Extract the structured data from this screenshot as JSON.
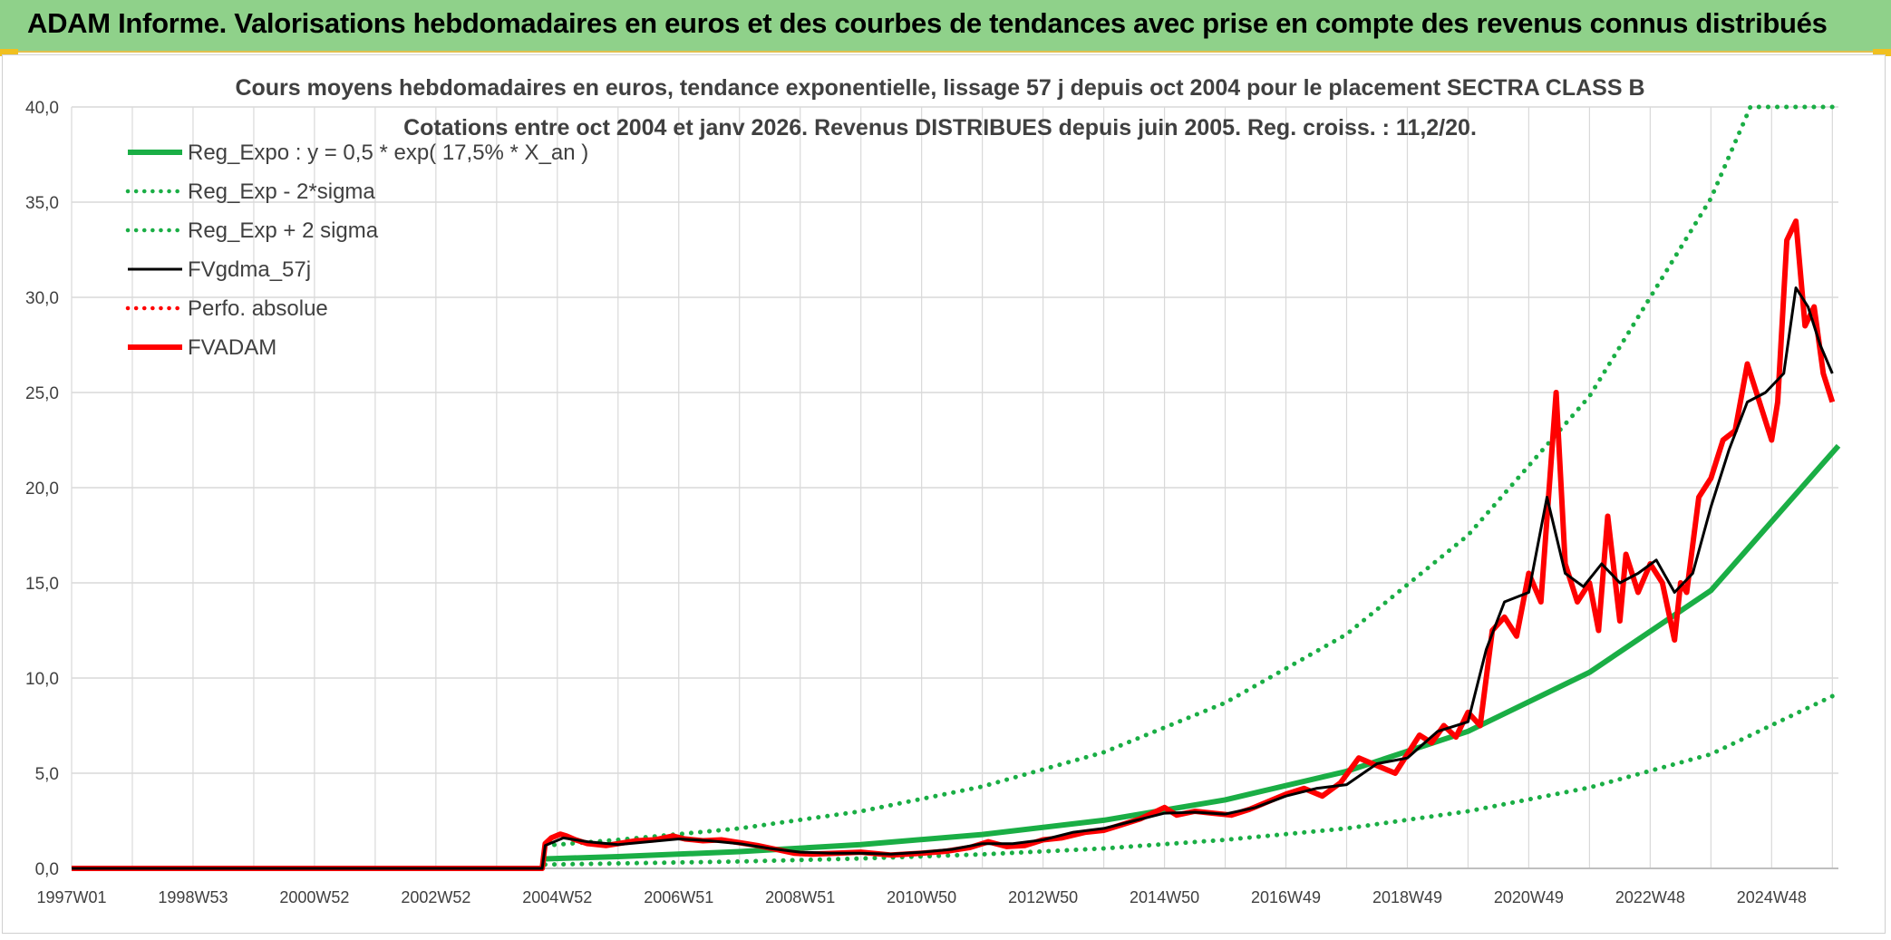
{
  "header": {
    "title": "ADAM Informe. Valorisations hebdomadaires en euros et des courbes de tendances avec prise en compte des revenus connus distribués"
  },
  "colors": {
    "header_bg": "#8fd18a",
    "green": "#1aae45",
    "black": "#000000",
    "red": "#ff0000",
    "grid": "#d9d9d9",
    "text": "#404040"
  },
  "chart_data": {
    "type": "line",
    "title": "Cours moyens hebdomadaires en euros, tendance exponentielle, lissage 57 j depuis oct 2004 pour le placement SECTRA CLASS B",
    "subtitle": "Cotations entre oct 2004 et janv 2026. Revenus DISTRIBUES depuis juin 2005. Reg. croiss. : 11,2/20.",
    "ylim": [
      0,
      40
    ],
    "yticks": [
      "0,0",
      "5,0",
      "10,0",
      "15,0",
      "20,0",
      "25,0",
      "30,0",
      "35,0",
      "40,0"
    ],
    "xlim": [
      1997.0,
      2026.1
    ],
    "xticks": [
      {
        "label": "1997W01",
        "x": 1997.0
      },
      {
        "label": "1998W53",
        "x": 1999.0
      },
      {
        "label": "2000W52",
        "x": 2001.0
      },
      {
        "label": "2002W52",
        "x": 2003.0
      },
      {
        "label": "2004W52",
        "x": 2005.0
      },
      {
        "label": "2006W51",
        "x": 2007.0
      },
      {
        "label": "2008W51",
        "x": 2009.0
      },
      {
        "label": "2010W50",
        "x": 2011.0
      },
      {
        "label": "2012W50",
        "x": 2013.0
      },
      {
        "label": "2014W50",
        "x": 2015.0
      },
      {
        "label": "2016W49",
        "x": 2017.0
      },
      {
        "label": "2018W49",
        "x": 2019.0
      },
      {
        "label": "2020W49",
        "x": 2021.0
      },
      {
        "label": "2022W48",
        "x": 2023.0
      },
      {
        "label": "2024W48",
        "x": 2025.0
      }
    ],
    "legend_position": "top-left",
    "series": [
      {
        "name": "Reg_Expo : y = 0,5 * exp( 17,5% *  X_an )",
        "style": "solid-thick",
        "color": "#1aae45",
        "x": [
          2004.8,
          2006,
          2008,
          2010,
          2012,
          2014,
          2016,
          2018,
          2020,
          2022,
          2024,
          2026.1
        ],
        "y": [
          0.5,
          0.62,
          0.88,
          1.25,
          1.78,
          2.53,
          3.6,
          5.1,
          7.2,
          10.3,
          14.6,
          22.2
        ]
      },
      {
        "name": "Reg_Exp - 2*sigma",
        "style": "dotted",
        "color": "#1aae45",
        "x": [
          2004.8,
          2006,
          2008,
          2010,
          2012,
          2014,
          2016,
          2018,
          2020,
          2022,
          2024,
          2026.1
        ],
        "y": [
          0.2,
          0.26,
          0.36,
          0.52,
          0.74,
          1.05,
          1.5,
          2.1,
          3.0,
          4.25,
          6.0,
          9.2
        ]
      },
      {
        "name": "Reg_Exp + 2 sigma",
        "style": "dotted",
        "color": "#1aae45",
        "x": [
          2004.8,
          2006,
          2008,
          2010,
          2012,
          2014,
          2016,
          2018,
          2020,
          2022,
          2024,
          2024.65,
          2026.1
        ],
        "y": [
          1.2,
          1.5,
          2.1,
          3.0,
          4.3,
          6.1,
          8.7,
          12.3,
          17.5,
          24.8,
          35.2,
          40,
          40
        ]
      },
      {
        "name": "FVgdma_57j",
        "style": "solid",
        "color": "#000000",
        "x": [
          1997.0,
          2004.75,
          2004.8,
          2005.1,
          2005.5,
          2006,
          2006.5,
          2007,
          2007.5,
          2008,
          2008.5,
          2009,
          2009.5,
          2010,
          2010.5,
          2011,
          2011.5,
          2012,
          2012.5,
          2013,
          2013.5,
          2014,
          2014.5,
          2015,
          2015.5,
          2016,
          2016.5,
          2017,
          2017.5,
          2018,
          2018.5,
          2019,
          2019.5,
          2020,
          2020.3,
          2020.6,
          2021,
          2021.3,
          2021.6,
          2021.9,
          2022.2,
          2022.5,
          2022.8,
          2023.1,
          2023.4,
          2023.7,
          2024,
          2024.3,
          2024.6,
          2024.9,
          2025.2,
          2025.4,
          2025.6,
          2025.8,
          2026.0
        ],
        "y": [
          0,
          0,
          1.2,
          1.6,
          1.4,
          1.25,
          1.4,
          1.55,
          1.45,
          1.3,
          1.05,
          0.85,
          0.8,
          0.8,
          0.75,
          0.85,
          1.0,
          1.3,
          1.3,
          1.5,
          1.9,
          2.1,
          2.5,
          2.9,
          2.95,
          2.85,
          3.2,
          3.8,
          4.2,
          4.4,
          5.5,
          5.8,
          7.2,
          7.7,
          11.5,
          14.0,
          14.5,
          19.5,
          15.5,
          14.8,
          16.0,
          15.0,
          15.5,
          16.2,
          14.5,
          15.5,
          19.0,
          22.0,
          24.5,
          25.0,
          26.0,
          30.5,
          29.5,
          27.5,
          26.0
        ]
      },
      {
        "name": "Perfo. absolue",
        "style": "dotted",
        "color": "#ff0000",
        "x": [],
        "y": []
      },
      {
        "name": "FVADAM",
        "style": "solid-thick",
        "color": "#ff0000",
        "x": [
          1997.0,
          2004.75,
          2004.8,
          2004.9,
          2005.05,
          2005.15,
          2005.3,
          2005.5,
          2005.8,
          2006,
          2006.3,
          2006.6,
          2006.9,
          2007.1,
          2007.4,
          2007.7,
          2008,
          2008.3,
          2008.6,
          2008.9,
          2009.2,
          2009.6,
          2010,
          2010.5,
          2011,
          2011.4,
          2011.8,
          2012.1,
          2012.4,
          2012.7,
          2013,
          2013.3,
          2013.7,
          2014,
          2014.3,
          2014.6,
          2015,
          2015.2,
          2015.5,
          2015.8,
          2016.1,
          2016.4,
          2016.7,
          2017,
          2017.3,
          2017.6,
          2017.9,
          2018.2,
          2018.5,
          2018.8,
          2019,
          2019.2,
          2019.4,
          2019.6,
          2019.8,
          2020.0,
          2020.2,
          2020.4,
          2020.6,
          2020.8,
          2021.0,
          2021.2,
          2021.45,
          2021.6,
          2021.8,
          2022.0,
          2022.15,
          2022.3,
          2022.5,
          2022.6,
          2022.8,
          2023.0,
          2023.2,
          2023.4,
          2023.5,
          2023.6,
          2023.8,
          2024.0,
          2024.2,
          2024.4,
          2024.6,
          2024.8,
          2025.0,
          2025.1,
          2025.25,
          2025.4,
          2025.55,
          2025.7,
          2025.85,
          2026.0
        ],
        "y": [
          0,
          0,
          1.3,
          1.6,
          1.8,
          1.7,
          1.5,
          1.3,
          1.2,
          1.3,
          1.45,
          1.5,
          1.7,
          1.55,
          1.45,
          1.5,
          1.35,
          1.2,
          1.0,
          0.8,
          0.75,
          0.8,
          0.85,
          0.7,
          0.8,
          0.9,
          1.1,
          1.4,
          1.15,
          1.2,
          1.5,
          1.6,
          1.9,
          2.0,
          2.3,
          2.6,
          3.2,
          2.8,
          3.0,
          2.9,
          2.8,
          3.1,
          3.5,
          3.9,
          4.2,
          3.8,
          4.5,
          5.8,
          5.4,
          5.0,
          6.0,
          7.0,
          6.6,
          7.5,
          6.9,
          8.2,
          7.5,
          12.5,
          13.2,
          12.2,
          15.5,
          14.0,
          25.0,
          16.0,
          14.0,
          15.0,
          12.5,
          18.5,
          13.0,
          16.5,
          14.5,
          16.0,
          15.0,
          12.0,
          15.0,
          14.5,
          19.5,
          20.5,
          22.5,
          23.0,
          26.5,
          24.5,
          22.5,
          24.5,
          33.0,
          34.0,
          28.5,
          29.5,
          26.0,
          24.5
        ]
      }
    ]
  }
}
